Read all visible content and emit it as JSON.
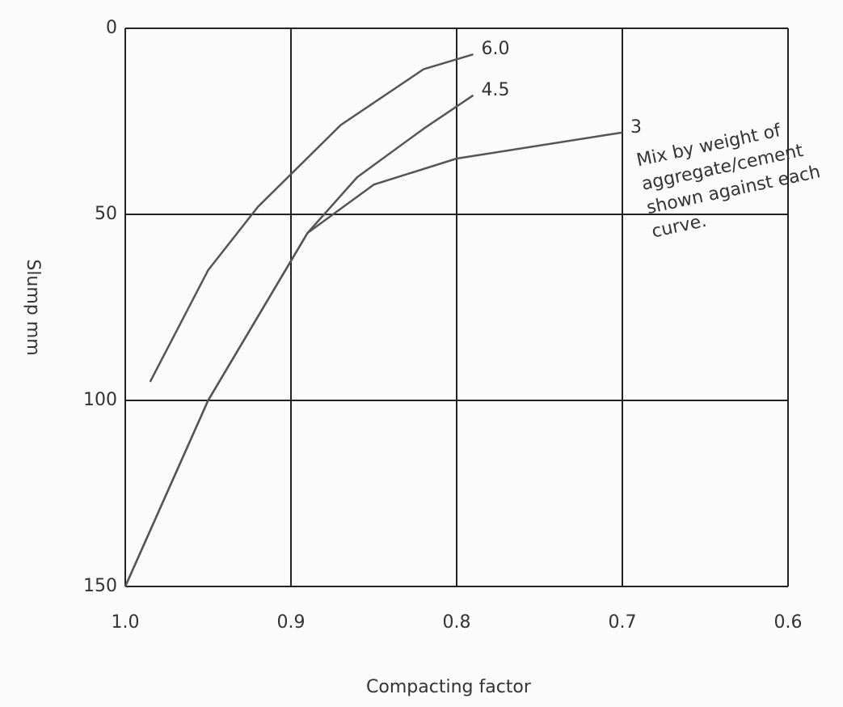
{
  "chart_data": {
    "type": "line",
    "x_label": "Compacting factor",
    "y_label": "Slump mm",
    "annotation": "Mix by weight of aggregate/cement shown against each curve.",
    "xlim": [
      1.0,
      0.6
    ],
    "ylim": [
      150,
      0
    ],
    "xticks": [
      {
        "value": 1,
        "label": "1.0"
      },
      0.9,
      0.8,
      0.7,
      0.6
    ],
    "yticks": [
      0,
      50,
      100,
      150
    ],
    "grid": true,
    "series": [
      {
        "name": "6.0",
        "color": "#555555",
        "x": [
          0.985,
          0.95,
          0.92,
          0.87,
          0.82,
          0.79
        ],
        "values": [
          95,
          65,
          48,
          26,
          11,
          7
        ]
      },
      {
        "name": "4.5",
        "color": "#555555",
        "x": [
          1.0,
          0.95,
          0.89,
          0.86,
          0.82,
          0.79
        ],
        "values": [
          150,
          100,
          55,
          40,
          27,
          18
        ]
      },
      {
        "name": "3",
        "color": "#555555",
        "x": [
          1.0,
          0.95,
          0.89,
          0.85,
          0.8,
          0.7
        ],
        "values": [
          150,
          100,
          55,
          42,
          35,
          28
        ]
      }
    ]
  }
}
